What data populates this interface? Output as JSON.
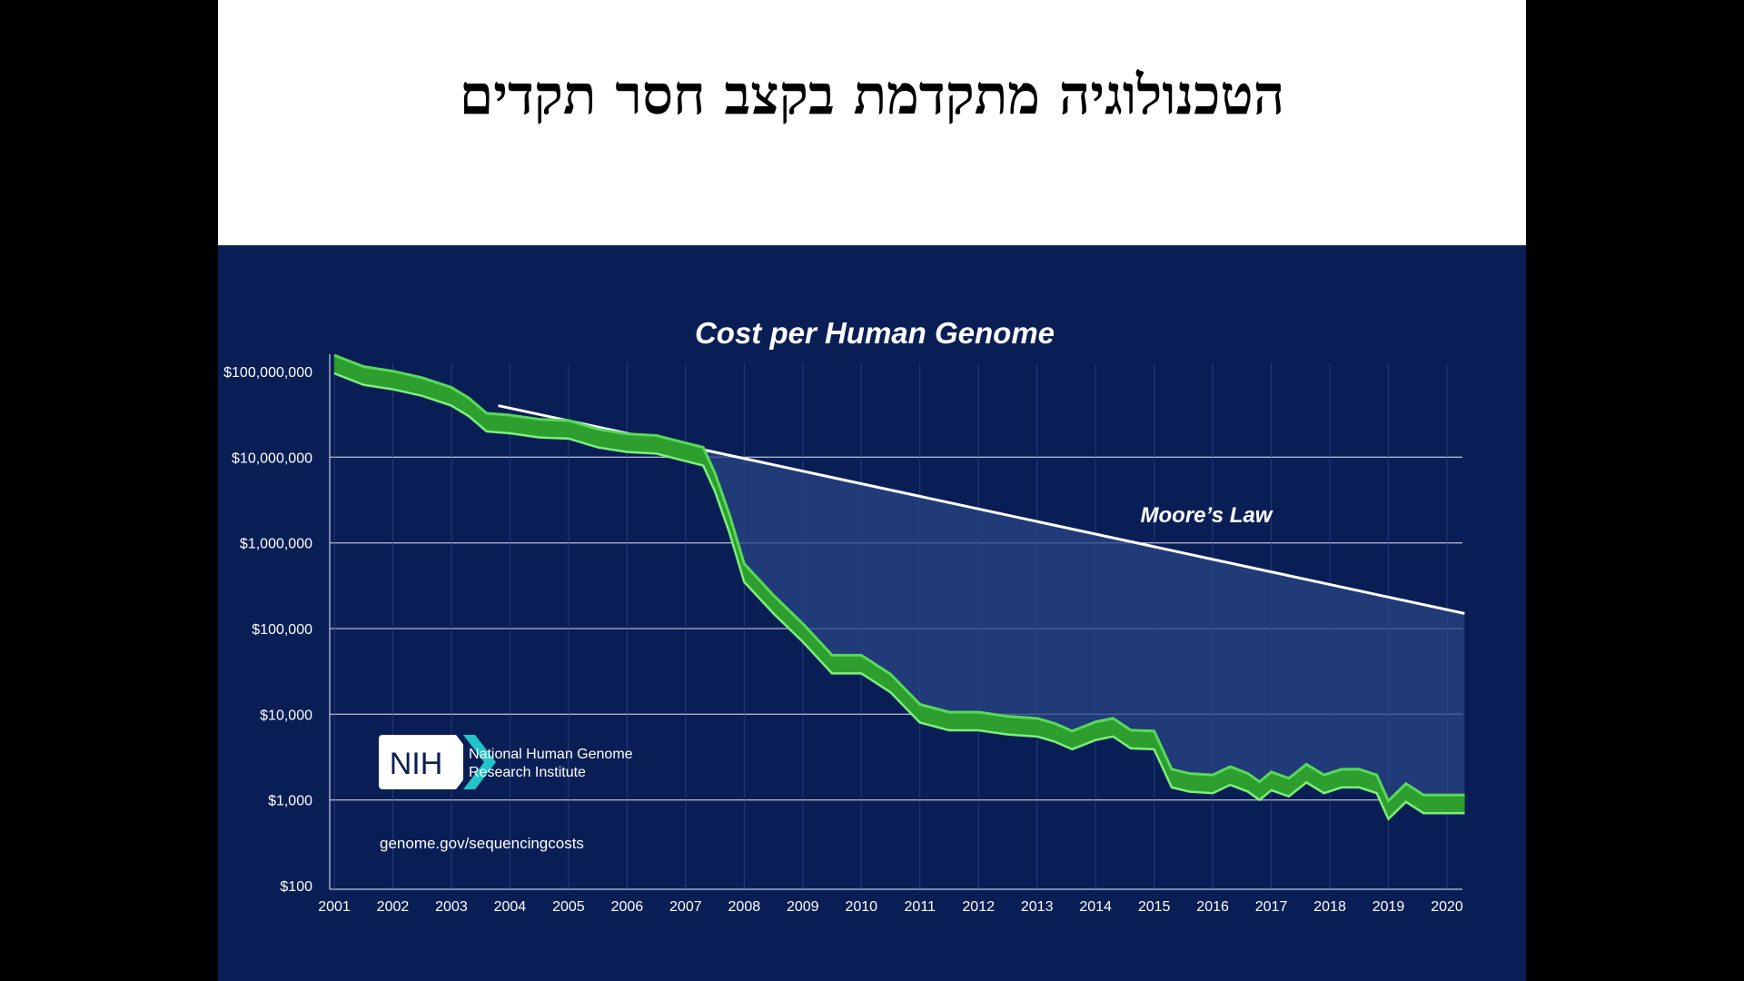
{
  "slide": {
    "title": "הטכנולוגיה מתקדמת בקצב חסר תקדים"
  },
  "chart_data": {
    "type": "line",
    "title": "Cost per Human Genome",
    "yscale": "log",
    "ylim": [
      100,
      100000000
    ],
    "xlim": [
      2001,
      2020
    ],
    "x_ticks": [
      "2001",
      "2002",
      "2003",
      "2004",
      "2005",
      "2006",
      "2007",
      "2008",
      "2009",
      "2010",
      "2011",
      "2012",
      "2013",
      "2014",
      "2015",
      "2016",
      "2017",
      "2018",
      "2019",
      "2020"
    ],
    "y_ticks": [
      {
        "value": 100000000,
        "label": "$100,000,000"
      },
      {
        "value": 10000000,
        "label": "$10,000,000"
      },
      {
        "value": 1000000,
        "label": "$1,000,000"
      },
      {
        "value": 100000,
        "label": "$100,000"
      },
      {
        "value": 10000,
        "label": "$10,000"
      },
      {
        "value": 1000,
        "label": "$1,000"
      },
      {
        "value": 100,
        "label": "$100"
      }
    ],
    "grid": true,
    "series": [
      {
        "name": "Cost per Human Genome",
        "color": "#3fbf3f",
        "points": [
          [
            2001.0,
            95000000
          ],
          [
            2001.5,
            70000000
          ],
          [
            2002.0,
            62000000
          ],
          [
            2002.5,
            52000000
          ],
          [
            2003.0,
            40000000
          ],
          [
            2003.3,
            30000000
          ],
          [
            2003.6,
            20000000
          ],
          [
            2004.0,
            19000000
          ],
          [
            2004.5,
            17000000
          ],
          [
            2005.0,
            16500000
          ],
          [
            2005.5,
            13000000
          ],
          [
            2006.0,
            11500000
          ],
          [
            2006.5,
            11000000
          ],
          [
            2007.0,
            9000000
          ],
          [
            2007.3,
            8000000
          ],
          [
            2007.5,
            4000000
          ],
          [
            2007.75,
            1300000
          ],
          [
            2008.0,
            350000
          ],
          [
            2008.5,
            150000
          ],
          [
            2009.0,
            70000
          ],
          [
            2009.5,
            30000
          ],
          [
            2010.0,
            30000
          ],
          [
            2010.5,
            18000
          ],
          [
            2011.0,
            8000
          ],
          [
            2011.5,
            6500
          ],
          [
            2012.0,
            6500
          ],
          [
            2012.5,
            5800
          ],
          [
            2013.0,
            5500
          ],
          [
            2013.3,
            4800
          ],
          [
            2013.6,
            3900
          ],
          [
            2014.0,
            5000
          ],
          [
            2014.3,
            5500
          ],
          [
            2014.6,
            4000
          ],
          [
            2015.0,
            3900
          ],
          [
            2015.3,
            1400
          ],
          [
            2015.6,
            1250
          ],
          [
            2016.0,
            1200
          ],
          [
            2016.3,
            1500
          ],
          [
            2016.6,
            1250
          ],
          [
            2016.8,
            1000
          ],
          [
            2017.0,
            1300
          ],
          [
            2017.3,
            1100
          ],
          [
            2017.6,
            1600
          ],
          [
            2017.9,
            1200
          ],
          [
            2018.2,
            1400
          ],
          [
            2018.5,
            1400
          ],
          [
            2018.8,
            1200
          ],
          [
            2019.0,
            600
          ],
          [
            2019.3,
            950
          ],
          [
            2019.6,
            700
          ],
          [
            2020.0,
            700
          ],
          [
            2020.3,
            700
          ]
        ]
      },
      {
        "name": "Moore's Law",
        "color": "#ffffff",
        "points": [
          [
            2003.8,
            40000000
          ],
          [
            2020.3,
            150000
          ]
        ]
      }
    ],
    "annotations": {
      "moores_law_label": "Moore’s Law"
    }
  },
  "logo": {
    "abbr": "NIH",
    "line1": "National Human Genome",
    "line2": "Research Institute"
  },
  "source_url": "genome.gov/sequencingcosts"
}
